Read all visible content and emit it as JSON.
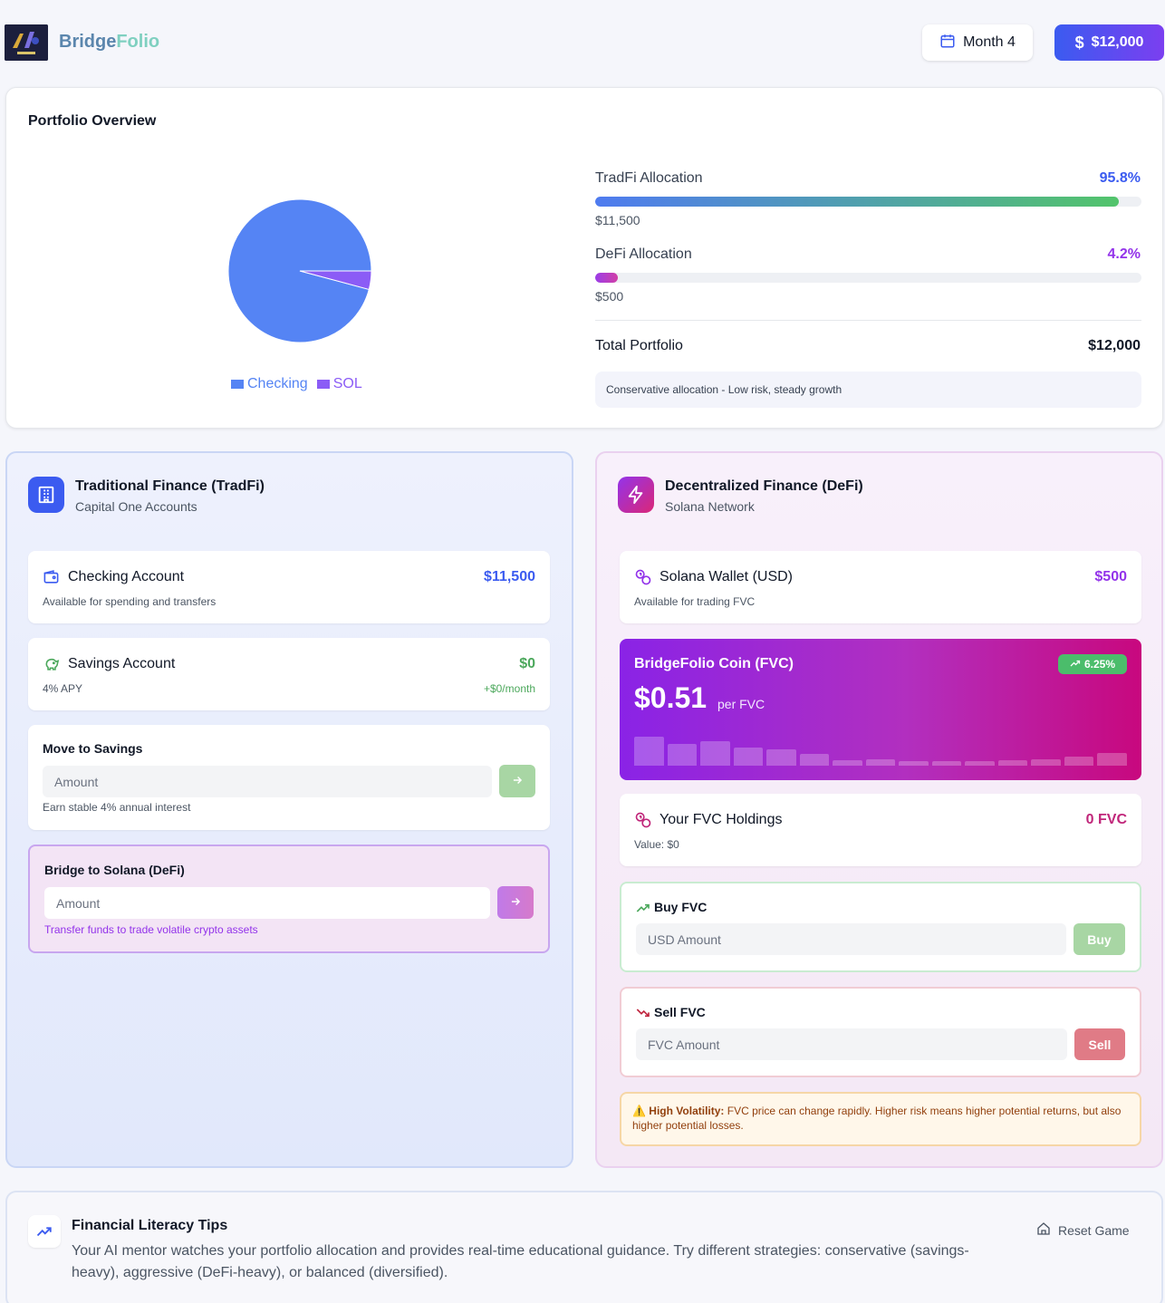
{
  "header": {
    "brand_part1": "Bridge",
    "brand_part2": "Folio",
    "month_label": "Month 4",
    "cash_label": "$12,000"
  },
  "overview": {
    "title": "Portfolio Overview",
    "legend": [
      {
        "name": "Checking",
        "color": "#5584f4"
      },
      {
        "name": "SOL",
        "color": "#8b5cf6"
      }
    ],
    "tradfi": {
      "label": "TradFi Allocation",
      "pct_label": "95.8%",
      "pct": 95.8,
      "amount": "$11,500"
    },
    "defi": {
      "label": "DeFi Allocation",
      "pct_label": "4.2%",
      "pct": 4.2,
      "amount": "$500"
    },
    "total_label": "Total Portfolio",
    "total_value": "$12,000",
    "note": "Conservative allocation - Low risk, steady growth"
  },
  "chart_data": {
    "type": "pie",
    "categories": [
      "Checking",
      "SOL"
    ],
    "values": [
      11500,
      500
    ],
    "colors": [
      "#5584f4",
      "#8b5cf6"
    ]
  },
  "tradfi": {
    "title": "Traditional Finance (TradFi)",
    "subtitle": "Capital One Accounts",
    "checking": {
      "name": "Checking Account",
      "value": "$11,500",
      "sub": "Available for spending and transfers"
    },
    "savings": {
      "name": "Savings Account",
      "value": "$0",
      "sub": "4% APY",
      "monthly": "+$0/month"
    },
    "move": {
      "title": "Move to Savings",
      "placeholder": "Amount",
      "hint": "Earn stable 4% annual interest"
    },
    "bridge": {
      "title": "Bridge to Solana (DeFi)",
      "placeholder": "Amount",
      "hint": "Transfer funds to trade volatile crypto assets"
    }
  },
  "defi": {
    "title": "Decentralized Finance (DeFi)",
    "subtitle": "Solana Network",
    "wallet": {
      "name": "Solana Wallet (USD)",
      "value": "$500",
      "sub": "Available for trading FVC"
    },
    "coin": {
      "name": "BridgeFolio Coin (FVC)",
      "change": "6.25%",
      "price": "$0.51",
      "unit": "per FVC",
      "history": [
        0.95,
        0.72,
        0.78,
        0.6,
        0.52,
        0.38,
        0.18,
        0.22,
        0.14,
        0.14,
        0.14,
        0.18,
        0.22,
        0.3,
        0.4
      ]
    },
    "holdings": {
      "name": "Your FVC Holdings",
      "value": "0 FVC",
      "sub": "Value: $0"
    },
    "buy": {
      "title": "Buy FVC",
      "placeholder": "USD Amount",
      "button": "Buy"
    },
    "sell": {
      "title": "Sell FVC",
      "placeholder": "FVC Amount",
      "button": "Sell"
    },
    "warning": {
      "bold": "High Volatility:",
      "text": " FVC price can change rapidly. Higher risk means higher potential returns, but also higher potential losses."
    }
  },
  "tips": {
    "title": "Financial Literacy Tips",
    "body": "Your AI mentor watches your portfolio allocation and provides real-time educational guidance. Try different strategies: conservative (savings-heavy), aggressive (DeFi-heavy), or balanced (diversified).",
    "reset": "Reset Game"
  }
}
